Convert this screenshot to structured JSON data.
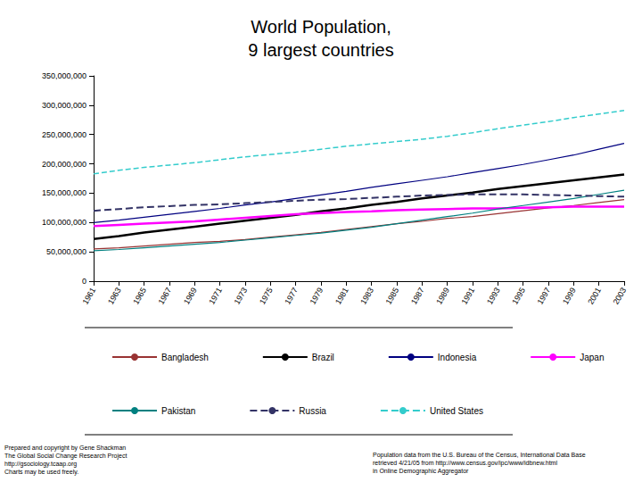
{
  "chart_data": {
    "type": "line",
    "title": "World Population,\n9 largest countries",
    "categories": [
      "1961",
      "1963",
      "1965",
      "1967",
      "1969",
      "1971",
      "1973",
      "1975",
      "1977",
      "1979",
      "1981",
      "1983",
      "1985",
      "1987",
      "1989",
      "1991",
      "1993",
      "1995",
      "1997",
      "1999",
      "2001",
      "2003"
    ],
    "series": [
      {
        "name": "Bangladesh",
        "color": "#993333",
        "line_style": "solid",
        "marker": "none",
        "values": [
          55000000,
          57000000,
          60000000,
          63000000,
          66000000,
          68000000,
          71000000,
          75000000,
          79000000,
          83000000,
          88000000,
          93000000,
          98000000,
          102000000,
          107000000,
          110000000,
          115000000,
          120000000,
          125000000,
          129000000,
          134000000,
          139000000
        ]
      },
      {
        "name": "Brazil",
        "color": "#000000",
        "line_style": "solid",
        "marker": "none",
        "values": [
          72000000,
          77000000,
          83000000,
          88000000,
          93000000,
          98000000,
          103000000,
          108000000,
          113000000,
          119000000,
          124000000,
          130000000,
          135000000,
          141000000,
          146000000,
          151000000,
          157000000,
          162000000,
          167000000,
          172000000,
          177000000,
          182000000
        ]
      },
      {
        "name": "Indonesia",
        "color": "#000080",
        "line_style": "solid",
        "marker": "none",
        "values": [
          100000000,
          104000000,
          109000000,
          114000000,
          119000000,
          124000000,
          130000000,
          135000000,
          141000000,
          147000000,
          153000000,
          160000000,
          166000000,
          172000000,
          178000000,
          185000000,
          192000000,
          199000000,
          207000000,
          215000000,
          225000000,
          235000000
        ]
      },
      {
        "name": "Japan",
        "color": "#ff00ff",
        "line_style": "solid",
        "marker": "none",
        "values": [
          94000000,
          96000000,
          98000000,
          100000000,
          102000000,
          105000000,
          108000000,
          111000000,
          114000000,
          116000000,
          118000000,
          119000000,
          121000000,
          122000000,
          123000000,
          124000000,
          124000000,
          125000000,
          126000000,
          127000000,
          127000000,
          127000000
        ]
      },
      {
        "name": "Pakistan",
        "color": "#008080",
        "line_style": "solid",
        "marker": "none",
        "values": [
          52000000,
          54000000,
          57000000,
          60000000,
          63000000,
          66000000,
          70000000,
          74000000,
          78000000,
          82000000,
          87000000,
          92000000,
          98000000,
          104000000,
          110000000,
          116000000,
          123000000,
          129000000,
          135000000,
          141000000,
          148000000,
          155000000
        ]
      },
      {
        "name": "Russia",
        "color": "#333366",
        "line_style": "dashed",
        "marker": "none",
        "values": [
          120000000,
          123000000,
          126000000,
          128000000,
          130000000,
          131000000,
          133000000,
          135000000,
          137000000,
          139000000,
          140000000,
          142000000,
          144000000,
          146000000,
          147000000,
          148000000,
          148000000,
          148000000,
          147000000,
          146000000,
          145000000,
          144000000
        ]
      },
      {
        "name": "United States",
        "color": "#33cccc",
        "line_style": "dashed",
        "marker": "none",
        "values": [
          183000000,
          189000000,
          194000000,
          198000000,
          202000000,
          207000000,
          212000000,
          216000000,
          220000000,
          225000000,
          230000000,
          234000000,
          238000000,
          242000000,
          247000000,
          253000000,
          260000000,
          266000000,
          272000000,
          279000000,
          285000000,
          291000000
        ]
      }
    ],
    "ylim": [
      0,
      350000000
    ],
    "yticks": [
      {
        "value": 0,
        "label": "0"
      },
      {
        "value": 50000000,
        "label": "50,000,000"
      },
      {
        "value": 100000000,
        "label": "100,000,000"
      },
      {
        "value": 150000000,
        "label": "150,000,000"
      },
      {
        "value": 200000000,
        "label": "200,000,000"
      },
      {
        "value": 250000000,
        "label": "250,000,000"
      },
      {
        "value": 300000000,
        "label": "300,000,000"
      },
      {
        "value": 350000000,
        "label": "350,000,000"
      }
    ],
    "grid": false,
    "legend": "bottom",
    "annotations": [
      "Prepared and copyright by Gene Shackman\nThe Global Social Change Research Project\nhttp://gsociology.tcaap.org\nCharts may be used freely.",
      "Population data from the U.S. Bureau of the Census, International Data Base\nretrieved 4/21/05 from http://www.census.gov/ipc/www/idbnew.html\nin Online Demographic Aggregator"
    ]
  }
}
